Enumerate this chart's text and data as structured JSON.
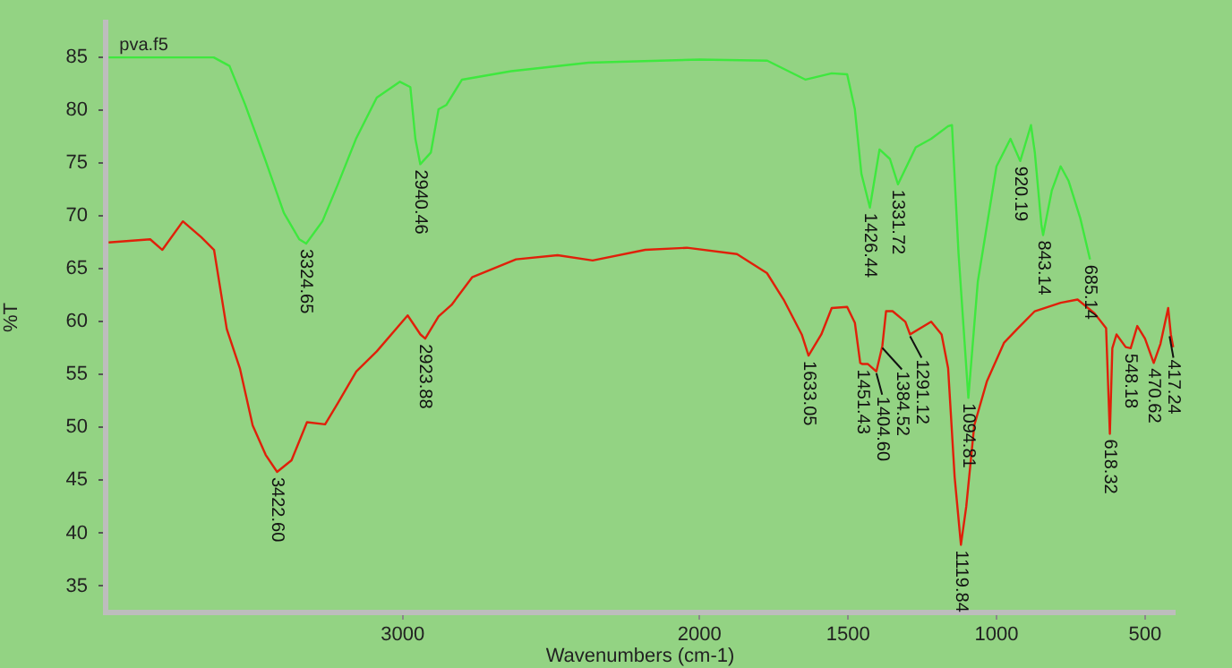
{
  "chart_data": {
    "type": "line",
    "xlabel": "Wavenumbers (cm-1)",
    "ylabel": "%T",
    "xlim": [
      4000,
      400
    ],
    "xticks": [
      3000,
      2000,
      1500,
      1000,
      500
    ],
    "ylim": [
      32.5,
      88.3
    ],
    "yticks": [
      35,
      40,
      45,
      50,
      55,
      60,
      65,
      70,
      75,
      80,
      85
    ],
    "series": [
      {
        "name": "pva.f5",
        "color": "#3ee83e",
        "x": [
          3990,
          3720,
          3636,
          3583,
          3531,
          3461,
          3400,
          3348,
          3324.65,
          3270,
          3218,
          3157,
          3087,
          3009,
          2974,
          2957,
          2940.46,
          2905,
          2879,
          2853,
          2800,
          2635,
          2374,
          2000,
          1772,
          1643,
          1555,
          1503,
          1477,
          1455,
          1426.44,
          1394,
          1359,
          1331.72,
          1272,
          1220,
          1163,
          1150,
          1128,
          1094.81,
          1063,
          1000,
          953,
          920.19,
          884,
          871,
          849,
          843.14,
          814,
          784,
          757,
          718,
          685.14
        ],
        "values": [
          85,
          85,
          85,
          84.2,
          80.6,
          75.2,
          70.3,
          67.8,
          67.4,
          69.5,
          73,
          77.3,
          81.2,
          82.7,
          82.2,
          77.3,
          74.9,
          76,
          80.1,
          80.5,
          82.9,
          83.7,
          84.5,
          84.8,
          84.7,
          82.9,
          83.5,
          83.4,
          80.1,
          74,
          70.8,
          76.3,
          75.4,
          73,
          76.5,
          77.3,
          78.5,
          78.6,
          66.5,
          52.8,
          63.8,
          74.7,
          77.3,
          75.2,
          78.6,
          76,
          69.2,
          68.2,
          72.4,
          74.7,
          73.3,
          69.8,
          65.9
        ]
      },
      {
        "color": "#e0200a",
        "x": [
          3990,
          3850,
          3809,
          3740,
          3678,
          3635,
          3592,
          3548,
          3505,
          3461,
          3422.6,
          3374,
          3322,
          3261,
          3218,
          3156,
          3087,
          2983,
          2940,
          2923.88,
          2879,
          2835,
          2766,
          2618,
          2478,
          2360,
          2183,
          2043,
          1874,
          1773,
          1717,
          1656,
          1633.05,
          1590,
          1555,
          1503,
          1477,
          1459,
          1451.43,
          1433,
          1404.6,
          1384.52,
          1372,
          1350,
          1307,
          1291.12,
          1220,
          1185,
          1163,
          1141,
          1119.84,
          1102,
          1075,
          1032,
          975,
          931,
          871,
          784,
          727,
          670,
          631,
          618.32,
          610,
          596,
          565,
          548.18,
          526,
          500,
          470.62,
          448,
          422,
          413,
          405
        ],
        "values": [
          67.5,
          67.8,
          66.8,
          69.5,
          68,
          66.8,
          59.3,
          55.6,
          50.2,
          47.4,
          45.8,
          46.9,
          50.5,
          50.3,
          52.3,
          55.3,
          57.2,
          60.6,
          58.8,
          58.4,
          60.5,
          61.6,
          64.2,
          65.9,
          66.3,
          65.8,
          66.8,
          67,
          66.4,
          64.6,
          62.1,
          58.8,
          56.8,
          58.8,
          61.3,
          61.4,
          59.9,
          56.1,
          56,
          56,
          55.3,
          57.7,
          61,
          61,
          60,
          58.8,
          60,
          58.8,
          55.6,
          45.3,
          38.9,
          42.5,
          50.2,
          54.4,
          58,
          59.3,
          61,
          61.8,
          62.1,
          60.8,
          59.4,
          49.4,
          57.5,
          58.8,
          57.6,
          57.5,
          59.6,
          58.4,
          56.1,
          57.9,
          61.3,
          58.8,
          57.6
        ]
      }
    ],
    "annotations": [
      {
        "text": "3324.65",
        "x": 3324.65,
        "y": 67.4
      },
      {
        "text": "2940.46",
        "x": 2940.46,
        "y": 74.9
      },
      {
        "text": "1426.44",
        "x": 1426.44,
        "y": 70.8
      },
      {
        "text": "1331.72",
        "x": 1331.72,
        "y": 73
      },
      {
        "text": "1094.81",
        "x": 1094.81,
        "y": 52.8
      },
      {
        "text": "920.19",
        "x": 920.19,
        "y": 75.2
      },
      {
        "text": "843.14",
        "x": 843.14,
        "y": 68.2
      },
      {
        "text": "685.14",
        "x": 685.14,
        "y": 65.9
      },
      {
        "text": "3422.60",
        "x": 3422.6,
        "y": 45.8
      },
      {
        "text": "2923.88",
        "x": 2923.88,
        "y": 58.4
      },
      {
        "text": "1633.05",
        "x": 1633.05,
        "y": 56.8
      },
      {
        "text": "1451.43",
        "x": 1451.43,
        "y": 56
      },
      {
        "text": "1404.60",
        "x": 1404.6,
        "y": 55.3
      },
      {
        "text": "1384.52",
        "x": 1384.52,
        "y": 57.7
      },
      {
        "text": "1291.12",
        "x": 1291.12,
        "y": 58.8
      },
      {
        "text": "1119.84",
        "x": 1119.84,
        "y": 38.9
      },
      {
        "text": "618.32",
        "x": 618.32,
        "y": 49.4
      },
      {
        "text": "548.18",
        "x": 548.18,
        "y": 57.5
      },
      {
        "text": "470.62",
        "x": 470.62,
        "y": 56.1
      },
      {
        "text": "417.24",
        "x": 417.24,
        "y": 58.8
      }
    ]
  }
}
